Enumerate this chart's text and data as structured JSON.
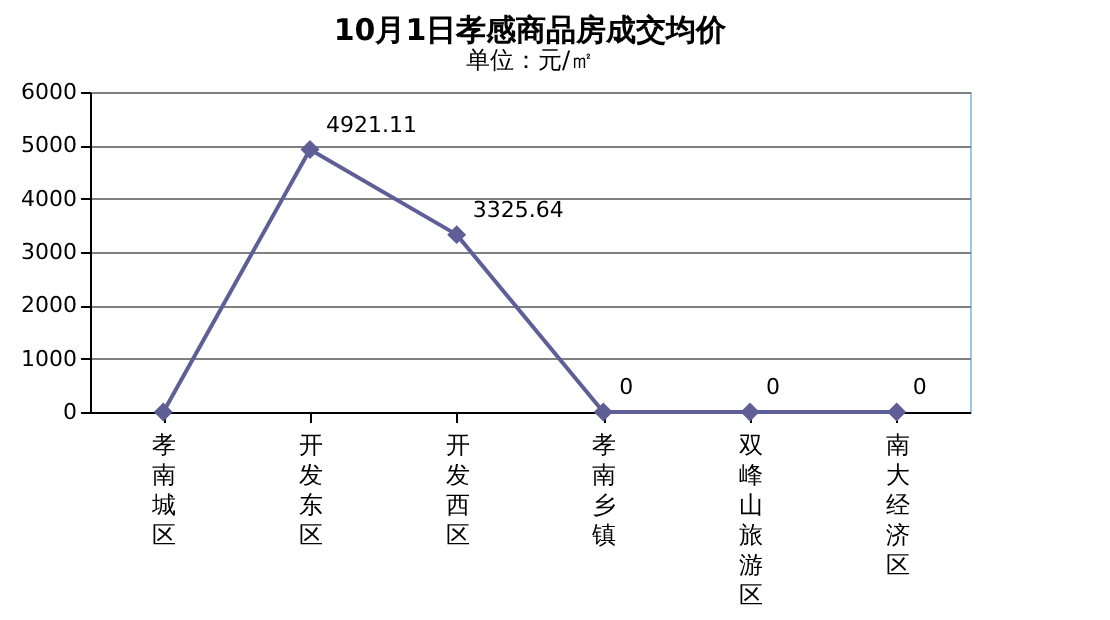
{
  "chart_data": {
    "type": "line",
    "title": "10月1日孝感商品房成交均价",
    "subtitle": "单位：元/㎡",
    "categories": [
      "孝南城区",
      "开发东区",
      "开发西区",
      "孝南乡镇",
      "双峰山旅游区",
      "南大经济区"
    ],
    "values": [
      0,
      4921.11,
      3325.64,
      0,
      0,
      0
    ],
    "value_labels": [
      null,
      "4921.11",
      "3325.64",
      "0",
      "0",
      "0"
    ],
    "color": "#5f5f97",
    "marker": "diamond",
    "ylim": [
      0,
      6000
    ],
    "yticks": [
      0,
      1000,
      2000,
      3000,
      4000,
      5000,
      6000
    ],
    "grid": "y"
  }
}
